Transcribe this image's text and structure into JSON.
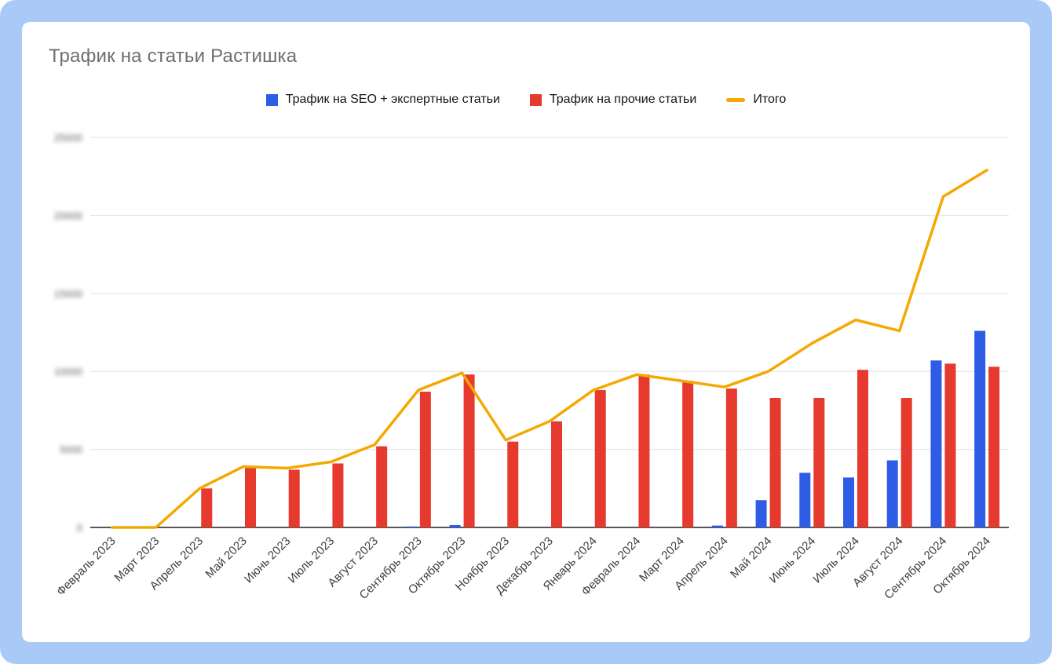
{
  "page": {
    "frame_color": "#a9c9f7",
    "card_color": "#ffffff"
  },
  "chart_data": {
    "type": "bar",
    "subtype": "grouped-bars-with-line",
    "title": "Трафик на статьи Растишка",
    "categories": [
      "Февраль 2023",
      "Март 2023",
      "Апрель 2023",
      "Май 2023",
      "Июнь 2023",
      "Июль 2023",
      "Август 2023",
      "Сентябрь 2023",
      "Октябрь 2023",
      "Ноябрь 2023",
      "Декабрь 2023",
      "Январь 2024",
      "Февраль 2024",
      "Март 2024",
      "Апрель 2024",
      "Май 2024",
      "Июнь 2024",
      "Июль 2024",
      "Август 2024",
      "Сентябрь 2024",
      "Октябрь 2024"
    ],
    "series": [
      {
        "name": "Трафик на SEO + экспертные статьи",
        "type": "bar",
        "color": "#2e5ce6",
        "values": [
          0,
          0,
          0,
          0,
          0,
          0,
          0,
          60,
          150,
          0,
          0,
          0,
          0,
          0,
          120,
          1750,
          3500,
          3200,
          4300,
          10700,
          12600
        ]
      },
      {
        "name": "Трафик на прочие статьи",
        "type": "bar",
        "color": "#e63a2e",
        "values": [
          0,
          0,
          2500,
          3900,
          3700,
          4100,
          5200,
          8700,
          9800,
          5500,
          6800,
          8800,
          9800,
          9400,
          8900,
          8300,
          8300,
          10100,
          8300,
          10500,
          10300
        ]
      },
      {
        "name": "Итого",
        "type": "line",
        "color": "#f5a800",
        "values": [
          0,
          0,
          2500,
          3900,
          3800,
          4200,
          5300,
          8800,
          9900,
          5600,
          6800,
          8800,
          9800,
          9400,
          9000,
          10000,
          11800,
          13300,
          12600,
          21200,
          22900
        ]
      }
    ],
    "ylim": [
      0,
      25000
    ],
    "y_tick_step": 5000,
    "y_tick_labels": [
      "0",
      "5000",
      "10000",
      "15000",
      "20000",
      "25000"
    ],
    "y_tick_labels_blurred": true,
    "grid": true,
    "legend_position": "top",
    "x_labels_rotated_degrees": 45
  }
}
